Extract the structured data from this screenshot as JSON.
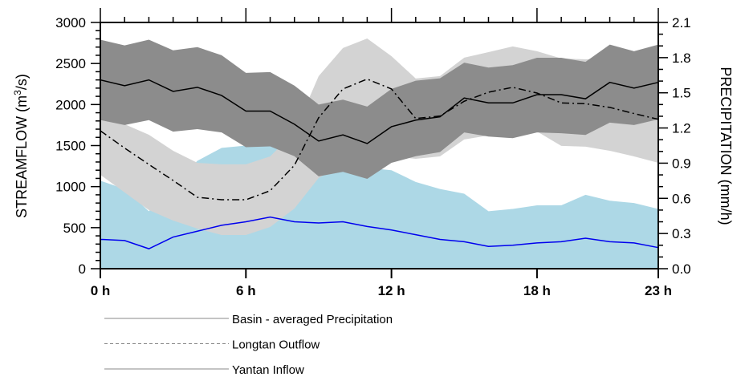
{
  "chart_data": {
    "type": "line",
    "title": "",
    "xlabel": "",
    "ylabel": "STREAMFLOW (m3/s)",
    "ylabel_parts": {
      "pre": "STREAMFLOW (m",
      "sup": "3",
      "post": "/s)"
    },
    "y2label": "PRECIPITATION (mm/h)",
    "x": [
      0,
      1,
      2,
      3,
      4,
      5,
      6,
      7,
      8,
      9,
      10,
      11,
      12,
      13,
      14,
      15,
      16,
      17,
      18,
      19,
      20,
      21,
      22,
      23
    ],
    "xlim": [
      0,
      23
    ],
    "ylim": [
      0,
      3000
    ],
    "y2lim": [
      0,
      2.1
    ],
    "x_ticks": [
      {
        "v": 0,
        "label": "0 h"
      },
      {
        "v": 6,
        "label": "6 h"
      },
      {
        "v": 12,
        "label": "12 h"
      },
      {
        "v": 18,
        "label": "18 h"
      },
      {
        "v": 23,
        "label": "23 h"
      }
    ],
    "y_ticks": [
      "0",
      "500",
      "1000",
      "1500",
      "2000",
      "2500",
      "3000"
    ],
    "y2_ticks": [
      "0.0",
      "0.3",
      "0.6",
      "0.9",
      "1.2",
      "1.5",
      "1.8",
      "2.1"
    ],
    "grid": false,
    "series": [
      {
        "name": "Basin-averaged Precipitation",
        "axis": "right",
        "unit": "mm/h",
        "color": "#0000ee",
        "dash": "solid",
        "values": [
          0.25,
          0.24,
          0.17,
          0.27,
          0.32,
          0.37,
          0.4,
          0.44,
          0.4,
          0.39,
          0.4,
          0.36,
          0.33,
          0.29,
          0.25,
          0.23,
          0.19,
          0.2,
          0.22,
          0.23,
          0.26,
          0.23,
          0.22,
          0.18
        ],
        "band_color": "#add8e6",
        "band_lower": [
          0,
          0,
          0,
          0,
          0,
          0,
          0,
          0,
          0,
          0,
          0,
          0,
          0,
          0,
          0,
          0,
          0,
          0,
          0,
          0,
          0,
          0,
          0,
          0
        ],
        "band_upper": [
          0.75,
          0.68,
          0.49,
          0.72,
          0.92,
          1.03,
          1.05,
          1.05,
          0.99,
          0.84,
          0.92,
          0.86,
          0.84,
          0.74,
          0.68,
          0.64,
          0.49,
          0.51,
          0.54,
          0.54,
          0.63,
          0.58,
          0.56,
          0.51
        ]
      },
      {
        "name": "Longtan Outflow",
        "axis": "left",
        "unit": "m3/s",
        "color": "#000000",
        "dash": "dashdot",
        "values": [
          1680,
          1470,
          1270,
          1075,
          870,
          840,
          840,
          950,
          1260,
          1840,
          2190,
          2310,
          2190,
          1830,
          1860,
          2040,
          2150,
          2210,
          2140,
          2020,
          2010,
          1965,
          1890,
          1820
        ],
        "band_color": "#d3d3d3",
        "band_lower": [
          1144,
          929,
          714,
          586,
          489,
          411,
          411,
          508,
          733,
          1105,
          1271,
          1320,
          1368,
          1339,
          1368,
          1574,
          1623,
          1603,
          1672,
          1496,
          1486,
          1437,
          1368,
          1290
        ],
        "band_upper": [
          1808,
          1760,
          1632,
          1437,
          1290,
          1271,
          1271,
          1368,
          1662,
          2346,
          2688,
          2805,
          2590,
          2317,
          2346,
          2571,
          2639,
          2708,
          2649,
          2561,
          2551,
          2571,
          2493,
          2414
        ]
      },
      {
        "name": "Yantan Inflow",
        "axis": "left",
        "unit": "m3/s",
        "color": "#000000",
        "dash": "solid",
        "values": [
          2300,
          2230,
          2300,
          2160,
          2210,
          2110,
          1920,
          1920,
          1760,
          1555,
          1630,
          1525,
          1730,
          1810,
          1850,
          2080,
          2020,
          2020,
          2120,
          2120,
          2070,
          2270,
          2200,
          2270
        ],
        "band_color": "#8c8c8c",
        "band_lower": [
          1810,
          1750,
          1810,
          1670,
          1700,
          1660,
          1480,
          1490,
          1370,
          1125,
          1180,
          1095,
          1290,
          1370,
          1420,
          1660,
          1610,
          1590,
          1660,
          1650,
          1630,
          1780,
          1750,
          1820
        ],
        "band_upper": [
          2790,
          2720,
          2790,
          2660,
          2700,
          2600,
          2385,
          2395,
          2230,
          2000,
          2060,
          1975,
          2190,
          2290,
          2320,
          2510,
          2450,
          2480,
          2570,
          2570,
          2520,
          2730,
          2650,
          2730
        ]
      }
    ],
    "legend": {
      "placement": "bottom-left",
      "entries": [
        {
          "label": "Basin - averaged Precipitation",
          "dash": "solid",
          "color": "#888888"
        },
        {
          "label": "Longtan Outflow",
          "dash": "dashed",
          "color": "#888888"
        },
        {
          "label": "Yantan Inflow",
          "dash": "solid",
          "color": "#888888"
        }
      ]
    }
  }
}
